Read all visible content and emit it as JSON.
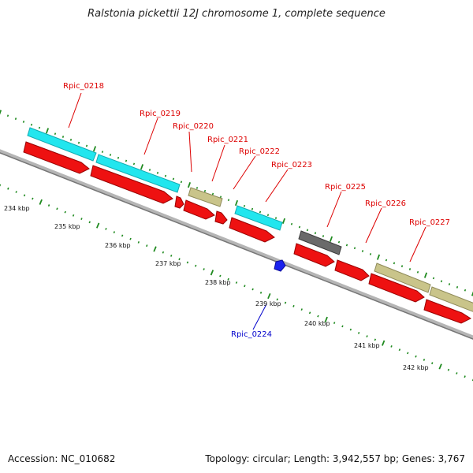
{
  "title": "Ralstonia pickettii 12J chromosome 1, complete sequence",
  "footer": {
    "accession": "Accession: NC_010682",
    "summary": "Topology: circular; Length: 3,942,557 bp; Genes: 3,767"
  },
  "colors": {
    "backbone": "#8a8a8a",
    "ticks": "#1f8a1f",
    "forward_label": "#dd0000",
    "reverse_label": "#0000cc",
    "cds": "#ee1111",
    "rna_cyan": "#22e6ee",
    "rna_khaki": "#c9c48a",
    "rna_gray": "#6a6a6a",
    "blue_feature": "#1a22ee"
  },
  "scale_labels": [
    "234 kbp",
    "235 kbp",
    "236 kbp",
    "237 kbp",
    "238 kbp",
    "239 kbp",
    "240 kbp",
    "241 kbp",
    "242 kbp"
  ],
  "gene_labels": [
    {
      "text": "Rpic_0218",
      "strand": "forward"
    },
    {
      "text": "Rpic_0219",
      "strand": "forward"
    },
    {
      "text": "Rpic_0220",
      "strand": "forward"
    },
    {
      "text": "Rpic_0221",
      "strand": "forward"
    },
    {
      "text": "Rpic_0222",
      "strand": "forward"
    },
    {
      "text": "Rpic_0223",
      "strand": "forward"
    },
    {
      "text": "Rpic_0224",
      "strand": "reverse"
    },
    {
      "text": "Rpic_0225",
      "strand": "forward"
    },
    {
      "text": "Rpic_0226",
      "strand": "forward"
    },
    {
      "text": "Rpic_0227",
      "strand": "forward"
    }
  ]
}
